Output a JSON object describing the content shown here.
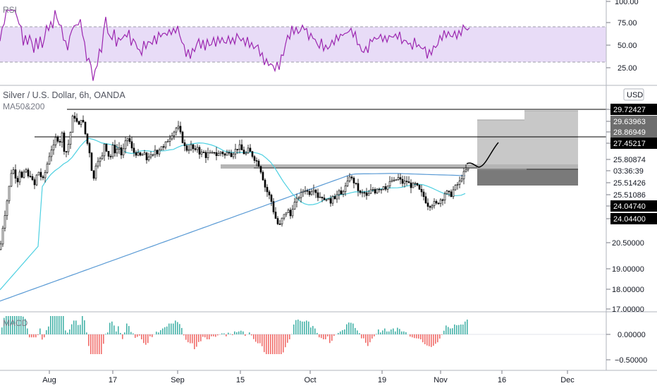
{
  "header": {
    "symbol_title": "Silver / U.S. Dollar, 6h, OANDA",
    "indicator_ma": "MA50&200",
    "indicator_rsi": "RSI",
    "indicator_macd": "MACD",
    "currency_button": "USD"
  },
  "colors": {
    "rsi_line": "#9c27b0",
    "rsi_band": "#e1d0f5",
    "ma50": "#4dd0e1",
    "ma200": "#5b9bd5",
    "macd_up": "#26a69a",
    "macd_down": "#ef5350",
    "candle": "#000000",
    "tag_black": "#000000",
    "zone_light": "#c4c4c4",
    "zone_dark": "#707070"
  },
  "chart_data": {
    "type": "candlestick",
    "title": "Silver / U.S. Dollar, 6h, OANDA",
    "x_ticks": [
      "Aug",
      "17",
      "Sep",
      "15",
      "Oct",
      "19",
      "Nov",
      "16",
      "Dec"
    ],
    "price_axis": {
      "scale": "log",
      "ticks": [
        "20.50000",
        "19.00000",
        "18.00000",
        "17.00000"
      ]
    },
    "price_tags": [
      {
        "label": "29.72427",
        "style": "black"
      },
      {
        "label": "29.63963",
        "style": "gray"
      },
      {
        "label": "28.86949",
        "style": "gray"
      },
      {
        "label": "27.45217",
        "style": "black"
      },
      {
        "label": "25.80874",
        "style": "plain"
      },
      {
        "label": "03:36:39",
        "style": "plain"
      },
      {
        "label": "25.51426",
        "style": "plain"
      },
      {
        "label": "25.51086",
        "style": "plain"
      },
      {
        "label": "24.04740",
        "style": "black"
      },
      {
        "label": "24.04400",
        "style": "black"
      }
    ],
    "horizontal_levels": [
      29.72,
      27.45
    ],
    "gray_zone": [
      25.55,
      25.8
    ],
    "close_path": [
      [
        0,
        21.0
      ],
      [
        4,
        22.4
      ],
      [
        8,
        23.5
      ],
      [
        12,
        24.6
      ],
      [
        16,
        25.8
      ],
      [
        20,
        26.0
      ],
      [
        24,
        25.1
      ],
      [
        28,
        25.9
      ],
      [
        32,
        25.3
      ],
      [
        36,
        26.1
      ],
      [
        40,
        25.5
      ],
      [
        44,
        25.7
      ],
      [
        48,
        24.8
      ],
      [
        52,
        25.6
      ],
      [
        56,
        25.9
      ],
      [
        60,
        25.2
      ],
      [
        64,
        25.8
      ],
      [
        68,
        26.5
      ],
      [
        72,
        27.2
      ],
      [
        76,
        27.4
      ],
      [
        80,
        28.1
      ],
      [
        84,
        27.6
      ],
      [
        88,
        28.2
      ],
      [
        92,
        26.9
      ],
      [
        96,
        27.3
      ],
      [
        100,
        28.3
      ],
      [
        104,
        29.5
      ],
      [
        108,
        29.0
      ],
      [
        112,
        28.7
      ],
      [
        116,
        29.3
      ],
      [
        120,
        28.4
      ],
      [
        124,
        27.6
      ],
      [
        128,
        26.9
      ],
      [
        132,
        25.1
      ],
      [
        136,
        26.3
      ],
      [
        140,
        26.7
      ],
      [
        144,
        26.5
      ],
      [
        148,
        27.6
      ],
      [
        152,
        27.1
      ],
      [
        156,
        26.6
      ],
      [
        160,
        27.4
      ],
      [
        164,
        27.0
      ],
      [
        168,
        27.5
      ],
      [
        172,
        26.9
      ],
      [
        176,
        27.3
      ],
      [
        180,
        28.0
      ],
      [
        184,
        27.7
      ],
      [
        188,
        27.1
      ],
      [
        192,
        27.0
      ],
      [
        196,
        26.9
      ],
      [
        200,
        26.8
      ],
      [
        204,
        27.0
      ],
      [
        208,
        26.6
      ],
      [
        212,
        26.9
      ],
      [
        216,
        26.7
      ],
      [
        220,
        27.2
      ],
      [
        224,
        27.0
      ],
      [
        228,
        27.5
      ],
      [
        232,
        27.3
      ],
      [
        236,
        27.7
      ],
      [
        240,
        27.9
      ],
      [
        244,
        28.2
      ],
      [
        248,
        28.4
      ],
      [
        252,
        28.7
      ],
      [
        256,
        28.2
      ],
      [
        260,
        27.6
      ],
      [
        264,
        27.2
      ],
      [
        268,
        27.3
      ],
      [
        272,
        27.5
      ],
      [
        276,
        27.0
      ],
      [
        280,
        27.4
      ],
      [
        284,
        26.9
      ],
      [
        288,
        27.1
      ],
      [
        292,
        26.8
      ],
      [
        296,
        27.0
      ],
      [
        300,
        26.9
      ],
      [
        304,
        27.1
      ],
      [
        308,
        26.8
      ],
      [
        312,
        27.1
      ],
      [
        316,
        27.0
      ],
      [
        320,
        26.8
      ],
      [
        324,
        27.2
      ],
      [
        328,
        26.9
      ],
      [
        332,
        27.1
      ],
      [
        336,
        27.3
      ],
      [
        340,
        27.4
      ],
      [
        344,
        27.1
      ],
      [
        348,
        26.9
      ],
      [
        352,
        27.2
      ],
      [
        356,
        27.0
      ],
      [
        360,
        26.7
      ],
      [
        364,
        26.5
      ],
      [
        368,
        26.2
      ],
      [
        372,
        25.6
      ],
      [
        376,
        24.9
      ],
      [
        380,
        24.5
      ],
      [
        384,
        24.2
      ],
      [
        388,
        23.4
      ],
      [
        392,
        22.8
      ],
      [
        396,
        22.4
      ],
      [
        400,
        22.9
      ],
      [
        404,
        23.2
      ],
      [
        408,
        23.5
      ],
      [
        412,
        23.1
      ],
      [
        416,
        23.8
      ],
      [
        420,
        24.0
      ],
      [
        424,
        24.3
      ],
      [
        428,
        24.5
      ],
      [
        432,
        24.8
      ],
      [
        436,
        24.6
      ],
      [
        440,
        24.5
      ],
      [
        444,
        24.9
      ],
      [
        448,
        24.6
      ],
      [
        452,
        24.2
      ],
      [
        456,
        24.4
      ],
      [
        460,
        24.0
      ],
      [
        464,
        24.3
      ],
      [
        468,
        23.8
      ],
      [
        472,
        24.4
      ],
      [
        476,
        24.2
      ],
      [
        480,
        24.6
      ],
      [
        484,
        24.4
      ],
      [
        488,
        24.8
      ],
      [
        492,
        25.0
      ],
      [
        496,
        25.6
      ],
      [
        500,
        25.3
      ],
      [
        504,
        25.1
      ],
      [
        508,
        24.7
      ],
      [
        512,
        24.4
      ],
      [
        516,
        24.6
      ],
      [
        520,
        24.3
      ],
      [
        524,
        24.5
      ],
      [
        528,
        24.8
      ],
      [
        532,
        24.6
      ],
      [
        536,
        24.9
      ],
      [
        540,
        24.7
      ],
      [
        544,
        25.0
      ],
      [
        548,
        24.8
      ],
      [
        552,
        25.1
      ],
      [
        556,
        25.3
      ],
      [
        560,
        25.2
      ],
      [
        564,
        25.5
      ],
      [
        568,
        25.3
      ],
      [
        572,
        25.1
      ],
      [
        576,
        25.3
      ],
      [
        580,
        25.1
      ],
      [
        584,
        24.9
      ],
      [
        588,
        25.1
      ],
      [
        592,
        24.9
      ],
      [
        596,
        24.6
      ],
      [
        600,
        24.4
      ],
      [
        604,
        24.0
      ],
      [
        608,
        23.7
      ],
      [
        612,
        23.8
      ],
      [
        616,
        23.9
      ],
      [
        620,
        23.8
      ],
      [
        624,
        24.1
      ],
      [
        628,
        24.2
      ],
      [
        632,
        24.6
      ],
      [
        636,
        24.5
      ],
      [
        640,
        24.4
      ],
      [
        644,
        24.8
      ],
      [
        648,
        25.0
      ],
      [
        652,
        25.2
      ],
      [
        656,
        25.6
      ],
      [
        660,
        25.9
      ],
      [
        664,
        26.0
      ]
    ]
  }
}
